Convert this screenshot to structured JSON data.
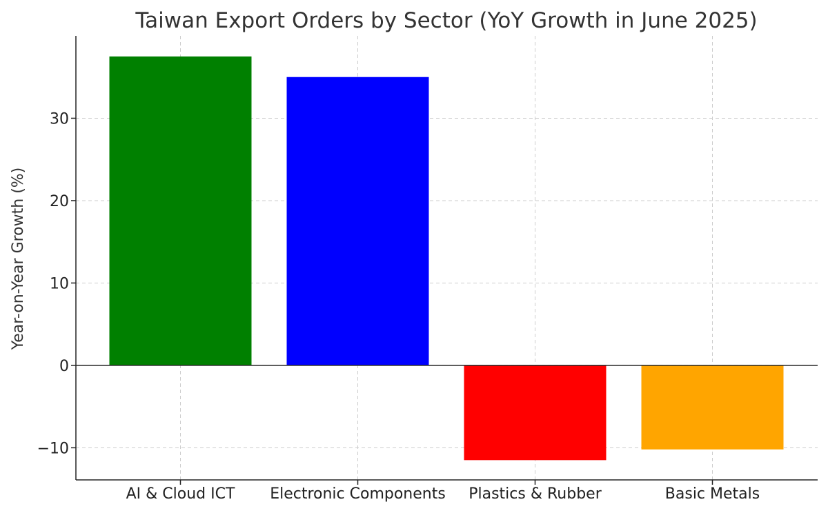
{
  "chart_data": {
    "type": "bar",
    "title": "Taiwan Export Orders by Sector (YoY Growth in June 2025)",
    "xlabel": "",
    "ylabel": "Year-on-Year Growth (%)",
    "categories": [
      "AI & Cloud ICT",
      "Electronic Components",
      "Plastics & Rubber",
      "Basic Metals"
    ],
    "values": [
      37.5,
      35.0,
      -11.5,
      -10.2
    ],
    "colors": [
      "#008000",
      "#0000ff",
      "#ff0000",
      "#ffa500"
    ],
    "ylim": [
      -13.9,
      40
    ],
    "yticks": [
      -10,
      0,
      10,
      20,
      30
    ],
    "ytick_labels": [
      "−10",
      "0",
      "10",
      "20",
      "30"
    ],
    "grid": true,
    "zero_line": true
  }
}
